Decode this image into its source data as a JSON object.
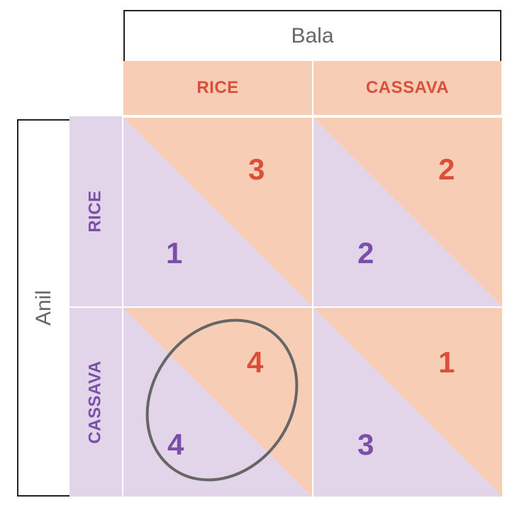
{
  "players": {
    "column_player": "Bala",
    "row_player": "Anil"
  },
  "strategies": {
    "columns": [
      "RICE",
      "CASSAVA"
    ],
    "rows": [
      "RICE",
      "CASSAVA"
    ]
  },
  "colors": {
    "bala": "#d94f3a",
    "anil": "#7b4fa8",
    "bala_fill": "#f7cdb6",
    "anil_fill": "#e2d5ea",
    "circle": "#666666"
  },
  "payoffs": {
    "rice_rice": {
      "bala": "3",
      "anil": "1"
    },
    "rice_cassava": {
      "bala": "2",
      "anil": "2"
    },
    "cassava_rice": {
      "bala": "4",
      "anil": "4"
    },
    "cassava_cassava": {
      "bala": "1",
      "anil": "3"
    }
  }
}
